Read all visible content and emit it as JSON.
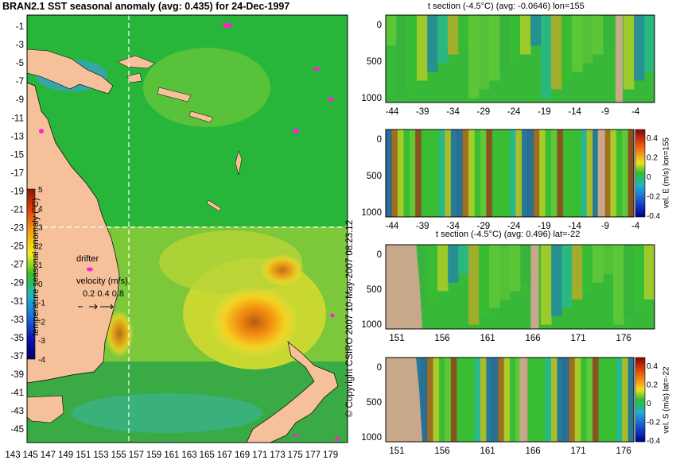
{
  "main_title": "BRAN2.1 SST seasonal anomaly (avg: 0.435) for 24-Dec-1997",
  "map": {
    "lat_ticks": [
      "-1",
      "-3",
      "-5",
      "-7",
      "-9",
      "-11",
      "-13",
      "-15",
      "-17",
      "-19",
      "-21",
      "-23",
      "-25",
      "-27",
      "-29",
      "-31",
      "-33",
      "-35",
      "-37",
      "-39",
      "-41",
      "-43",
      "-45"
    ],
    "lon_ticks": [
      "143",
      "145",
      "147",
      "149",
      "151",
      "153",
      "155",
      "157",
      "159",
      "161",
      "163",
      "165",
      "167",
      "169",
      "171",
      "173",
      "175",
      "177",
      "179"
    ],
    "section_lon": 155,
    "section_lat": -22
  },
  "colorbar": {
    "label": "temperature seasonal anomaly (°C)",
    "ticks": [
      "5",
      "4",
      "3",
      "2",
      "1",
      "0",
      "-1",
      "-2",
      "-3",
      "-4"
    ],
    "range": [
      -4,
      5
    ]
  },
  "legend": {
    "drifter_label": "drifter",
    "velocity_label": "velocity (m/s)",
    "velocity_scale": "0.2 0.4 0.8",
    "arrow_glyphs": "- > >"
  },
  "copyright": "© Copyright CSIRO 2007  10-May-2007 08:23:12",
  "panels": [
    {
      "title": "t section (-4.5°C) (avg: -0.0646) lon=155",
      "x_ticks": [
        "-44",
        "-39",
        "-34",
        "-29",
        "-24",
        "-19",
        "-14",
        "-9",
        "-4"
      ],
      "y_ticks": [
        "0",
        "500",
        "1000"
      ],
      "has_colorbar": false,
      "cb_label": "",
      "cb_ticks": []
    },
    {
      "title": "",
      "x_ticks": [
        "-44",
        "-39",
        "-34",
        "-29",
        "-24",
        "-19",
        "-14",
        "-9",
        "-4"
      ],
      "y_ticks": [
        "0",
        "500",
        "1000"
      ],
      "has_colorbar": true,
      "cb_label": "vel. E (m/s) lon=155",
      "cb_ticks": [
        "0.4",
        "0.2",
        "0",
        "-0.2",
        "-0.4"
      ]
    },
    {
      "title": "t section (-4.5°C) (avg: 0.496) lat=-22",
      "x_ticks": [
        "151",
        "156",
        "161",
        "166",
        "171",
        "176"
      ],
      "y_ticks": [
        "0",
        "500",
        "1000"
      ],
      "has_colorbar": false,
      "cb_label": "",
      "cb_ticks": []
    },
    {
      "title": "",
      "x_ticks": [
        "151",
        "156",
        "161",
        "166",
        "171",
        "176"
      ],
      "y_ticks": [
        "0",
        "500",
        "1000"
      ],
      "has_colorbar": true,
      "cb_label": "vel. S (m/s) lat=-22",
      "cb_ticks": [
        "0.4",
        "0.2",
        "0",
        "-0.2",
        "-0.4"
      ]
    }
  ],
  "chart_data": [
    {
      "type": "heatmap",
      "title": "BRAN2.1 SST seasonal anomaly (avg: 0.435) for 24-Dec-1997",
      "xlim": [
        143,
        180
      ],
      "ylim": [
        -45,
        0
      ],
      "colorbar_range": [
        -4,
        5
      ]
    },
    {
      "type": "heatmap",
      "title": "t section (-4.5°C) (avg: -0.0646) lon=155",
      "xlim": [
        -45,
        0
      ],
      "ylim": [
        1100,
        0
      ]
    },
    {
      "type": "heatmap",
      "title": "",
      "xlim": [
        -45,
        0
      ],
      "ylim": [
        1100,
        0
      ],
      "colorbar_range": [
        -0.4,
        0.4
      ]
    },
    {
      "type": "heatmap",
      "title": "t section (-4.5°C) (avg: 0.496) lat=-22",
      "xlim": [
        150,
        180
      ],
      "ylim": [
        1100,
        0
      ]
    },
    {
      "type": "heatmap",
      "title": "",
      "xlim": [
        150,
        180
      ],
      "ylim": [
        1100,
        0
      ],
      "colorbar_range": [
        -0.4,
        0.4
      ]
    }
  ]
}
